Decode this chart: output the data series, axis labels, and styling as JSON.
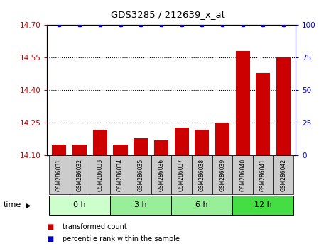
{
  "title": "GDS3285 / 212639_x_at",
  "samples": [
    "GSM286031",
    "GSM286032",
    "GSM286033",
    "GSM286034",
    "GSM286035",
    "GSM286036",
    "GSM286037",
    "GSM286038",
    "GSM286039",
    "GSM286040",
    "GSM286041",
    "GSM286042"
  ],
  "bar_values": [
    14.15,
    14.15,
    14.22,
    14.15,
    14.18,
    14.17,
    14.23,
    14.22,
    14.25,
    14.58,
    14.48,
    14.55
  ],
  "percentile_values": [
    100,
    100,
    100,
    100,
    100,
    100,
    100,
    100,
    100,
    100,
    100,
    100
  ],
  "bar_bottom": 14.1,
  "ylim_left": [
    14.1,
    14.7
  ],
  "ylim_right": [
    0,
    100
  ],
  "yticks_left": [
    14.1,
    14.25,
    14.4,
    14.55,
    14.7
  ],
  "yticks_right": [
    0,
    25,
    50,
    75,
    100
  ],
  "bar_color": "#cc0000",
  "dot_color": "#0000cc",
  "groups": [
    {
      "label": "0 h",
      "start": 0,
      "end": 3,
      "color": "#ccffcc"
    },
    {
      "label": "3 h",
      "start": 3,
      "end": 6,
      "color": "#99ee99"
    },
    {
      "label": "6 h",
      "start": 6,
      "end": 9,
      "color": "#99ee99"
    },
    {
      "label": "12 h",
      "start": 9,
      "end": 12,
      "color": "#44dd44"
    }
  ],
  "time_label": "time",
  "legend_bar_label": "transformed count",
  "legend_dot_label": "percentile rank within the sample",
  "sample_box_color": "#cccccc",
  "dotted_line_color": "black"
}
